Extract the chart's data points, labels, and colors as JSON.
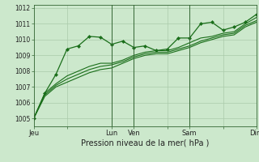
{
  "background_color": "#cce8cc",
  "grid_color": "#aacaaa",
  "line_color": "#1a6e1a",
  "vline_color": "#336633",
  "xlabel": "Pression niveau de la mer( hPa )",
  "ylim": [
    1004.5,
    1012.2
  ],
  "yticks": [
    1005,
    1006,
    1007,
    1008,
    1009,
    1010,
    1011,
    1012
  ],
  "xtick_labels": [
    "Jeu",
    "",
    "Lun",
    "Ven",
    "",
    "Sam",
    "",
    "Dim"
  ],
  "xtick_positions": [
    0,
    3,
    7,
    9,
    12,
    14,
    17,
    20
  ],
  "series": [
    [
      1005.0,
      1006.6,
      1007.8,
      1009.4,
      1009.6,
      1010.2,
      1010.15,
      1009.7,
      1009.9,
      1009.5,
      1009.6,
      1009.3,
      1009.4,
      1010.1,
      1010.1,
      1011.0,
      1011.1,
      1010.6,
      1010.8,
      1011.1,
      1011.6
    ],
    [
      1005.0,
      1006.6,
      1007.2,
      1007.7,
      1008.0,
      1008.3,
      1008.5,
      1008.5,
      1008.7,
      1009.0,
      1009.2,
      1009.3,
      1009.3,
      1009.5,
      1009.8,
      1010.1,
      1010.2,
      1010.4,
      1010.5,
      1011.0,
      1011.4
    ],
    [
      1005.0,
      1006.5,
      1007.1,
      1007.5,
      1007.8,
      1008.1,
      1008.3,
      1008.4,
      1008.6,
      1008.9,
      1009.1,
      1009.2,
      1009.2,
      1009.4,
      1009.6,
      1009.9,
      1010.1,
      1010.3,
      1010.4,
      1010.9,
      1011.2
    ],
    [
      1005.0,
      1006.4,
      1007.0,
      1007.3,
      1007.6,
      1007.9,
      1008.1,
      1008.2,
      1008.5,
      1008.8,
      1009.0,
      1009.1,
      1009.1,
      1009.3,
      1009.5,
      1009.8,
      1010.0,
      1010.2,
      1010.3,
      1010.8,
      1011.1
    ]
  ],
  "vline_positions": [
    7,
    9,
    14,
    20
  ],
  "num_points": 21,
  "xlabel_fontsize": 7,
  "ytick_fontsize": 5.5,
  "xtick_fontsize": 6
}
